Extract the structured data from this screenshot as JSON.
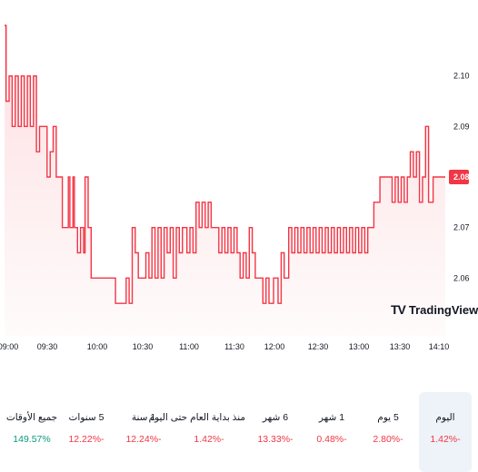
{
  "logo_text": "TradingView",
  "logo_mark": "TV",
  "current_price": "2.08",
  "colors": {
    "line": "#f23645",
    "fill_top": "rgba(242,54,69,0.16)",
    "fill_bottom": "rgba(242,54,69,0.02)",
    "negative": "#f23645",
    "positive": "#089981"
  },
  "chart_data": {
    "type": "area",
    "x_ticks": [
      "09:00",
      "09:30",
      "10:00",
      "10:30",
      "11:00",
      "11:30",
      "12:00",
      "12:30",
      "13:00",
      "13:30",
      "14:10"
    ],
    "y_ticks": [
      "2.10",
      "2.09",
      "2.08",
      "2.07",
      "2.06"
    ],
    "ylim": [
      2.05,
      2.11
    ],
    "current_value": 2.08,
    "points": [
      [
        "09:00",
        2.11
      ],
      [
        "09:01",
        2.095
      ],
      [
        "09:03",
        2.1
      ],
      [
        "09:05",
        2.09
      ],
      [
        "09:07",
        2.1
      ],
      [
        "09:09",
        2.09
      ],
      [
        "09:11",
        2.1
      ],
      [
        "09:13",
        2.09
      ],
      [
        "09:15",
        2.1
      ],
      [
        "09:17",
        2.09
      ],
      [
        "09:19",
        2.1
      ],
      [
        "09:21",
        2.085
      ],
      [
        "09:23",
        2.09
      ],
      [
        "09:26",
        2.09
      ],
      [
        "09:28",
        2.08
      ],
      [
        "09:30",
        2.085
      ],
      [
        "09:32",
        2.09
      ],
      [
        "09:34",
        2.08
      ],
      [
        "09:36",
        2.08
      ],
      [
        "09:38",
        2.07
      ],
      [
        "09:40",
        2.07
      ],
      [
        "09:42",
        2.08
      ],
      [
        "09:43",
        2.07
      ],
      [
        "09:45",
        2.08
      ],
      [
        "09:46",
        2.07
      ],
      [
        "09:48",
        2.065
      ],
      [
        "09:50",
        2.07
      ],
      [
        "09:52",
        2.065
      ],
      [
        "09:53",
        2.08
      ],
      [
        "09:55",
        2.07
      ],
      [
        "09:57",
        2.06
      ],
      [
        "10:00",
        2.06
      ],
      [
        "10:05",
        2.06
      ],
      [
        "10:10",
        2.06
      ],
      [
        "10:13",
        2.055
      ],
      [
        "10:18",
        2.055
      ],
      [
        "10:20",
        2.06
      ],
      [
        "10:22",
        2.055
      ],
      [
        "10:24",
        2.07
      ],
      [
        "10:26",
        2.065
      ],
      [
        "10:28",
        2.06
      ],
      [
        "10:30",
        2.06
      ],
      [
        "10:33",
        2.065
      ],
      [
        "10:35",
        2.06
      ],
      [
        "10:37",
        2.07
      ],
      [
        "10:39",
        2.06
      ],
      [
        "10:41",
        2.07
      ],
      [
        "10:43",
        2.06
      ],
      [
        "10:45",
        2.07
      ],
      [
        "10:47",
        2.065
      ],
      [
        "10:49",
        2.07
      ],
      [
        "10:51",
        2.06
      ],
      [
        "10:53",
        2.07
      ],
      [
        "10:55",
        2.065
      ],
      [
        "10:57",
        2.07
      ],
      [
        "11:00",
        2.065
      ],
      [
        "11:02",
        2.07
      ],
      [
        "11:04",
        2.065
      ],
      [
        "11:06",
        2.075
      ],
      [
        "11:08",
        2.07
      ],
      [
        "11:10",
        2.075
      ],
      [
        "11:12",
        2.07
      ],
      [
        "11:14",
        2.075
      ],
      [
        "11:16",
        2.07
      ],
      [
        "11:19",
        2.07
      ],
      [
        "11:21",
        2.065
      ],
      [
        "11:23",
        2.07
      ],
      [
        "11:25",
        2.065
      ],
      [
        "11:27",
        2.07
      ],
      [
        "11:29",
        2.065
      ],
      [
        "11:31",
        2.07
      ],
      [
        "11:33",
        2.065
      ],
      [
        "11:35",
        2.06
      ],
      [
        "11:37",
        2.065
      ],
      [
        "11:39",
        2.06
      ],
      [
        "11:41",
        2.07
      ],
      [
        "11:43",
        2.065
      ],
      [
        "11:45",
        2.06
      ],
      [
        "11:48",
        2.06
      ],
      [
        "11:50",
        2.055
      ],
      [
        "11:52",
        2.06
      ],
      [
        "11:54",
        2.055
      ],
      [
        "11:57",
        2.06
      ],
      [
        "12:00",
        2.055
      ],
      [
        "12:02",
        2.065
      ],
      [
        "12:04",
        2.06
      ],
      [
        "12:07",
        2.07
      ],
      [
        "12:09",
        2.065
      ],
      [
        "12:11",
        2.07
      ],
      [
        "12:13",
        2.065
      ],
      [
        "12:15",
        2.07
      ],
      [
        "12:17",
        2.065
      ],
      [
        "12:19",
        2.07
      ],
      [
        "12:21",
        2.065
      ],
      [
        "12:23",
        2.07
      ],
      [
        "12:25",
        2.065
      ],
      [
        "12:27",
        2.07
      ],
      [
        "12:29",
        2.065
      ],
      [
        "12:31",
        2.07
      ],
      [
        "12:33",
        2.065
      ],
      [
        "12:35",
        2.07
      ],
      [
        "12:37",
        2.065
      ],
      [
        "12:39",
        2.07
      ],
      [
        "12:41",
        2.065
      ],
      [
        "12:43",
        2.07
      ],
      [
        "12:45",
        2.065
      ],
      [
        "12:47",
        2.07
      ],
      [
        "12:49",
        2.065
      ],
      [
        "12:51",
        2.07
      ],
      [
        "12:53",
        2.065
      ],
      [
        "12:55",
        2.07
      ],
      [
        "12:57",
        2.065
      ],
      [
        "12:59",
        2.07
      ],
      [
        "13:01",
        2.07
      ],
      [
        "13:03",
        2.075
      ],
      [
        "13:05",
        2.075
      ],
      [
        "13:07",
        2.08
      ],
      [
        "13:10",
        2.08
      ],
      [
        "13:13",
        2.08
      ],
      [
        "13:15",
        2.075
      ],
      [
        "13:17",
        2.08
      ],
      [
        "13:19",
        2.075
      ],
      [
        "13:21",
        2.08
      ],
      [
        "13:23",
        2.075
      ],
      [
        "13:25",
        2.08
      ],
      [
        "13:27",
        2.085
      ],
      [
        "13:29",
        2.08
      ],
      [
        "13:31",
        2.085
      ],
      [
        "13:33",
        2.075
      ],
      [
        "13:35",
        2.08
      ],
      [
        "13:37",
        2.09
      ],
      [
        "13:39",
        2.075
      ],
      [
        "13:42",
        2.08
      ],
      [
        "13:45",
        2.08
      ],
      [
        "13:50",
        2.08
      ]
    ]
  },
  "periods": [
    {
      "label": "اليوم",
      "value": "1.42%‎-",
      "tone": "neg",
      "active": true
    },
    {
      "label": "5 يوم",
      "value": "2.80%‎-",
      "tone": "neg",
      "active": false
    },
    {
      "label": "1 شهر",
      "value": "0.48%‎-",
      "tone": "neg",
      "active": false
    },
    {
      "label": "6 شهر",
      "value": "13.33%‎-",
      "tone": "neg",
      "active": false
    },
    {
      "label": "منذ بداية العام حتى اليوم",
      "value": "1.42%‎-",
      "tone": "neg",
      "active": false
    },
    {
      "label": "1 سنة",
      "value": "12.24%‎-",
      "tone": "neg",
      "active": false
    },
    {
      "label": "5 سنوات",
      "value": "12.22%‎-",
      "tone": "neg",
      "active": false
    },
    {
      "label": "جميع الأوقات",
      "value": "149.57%",
      "tone": "pos",
      "active": false
    }
  ]
}
